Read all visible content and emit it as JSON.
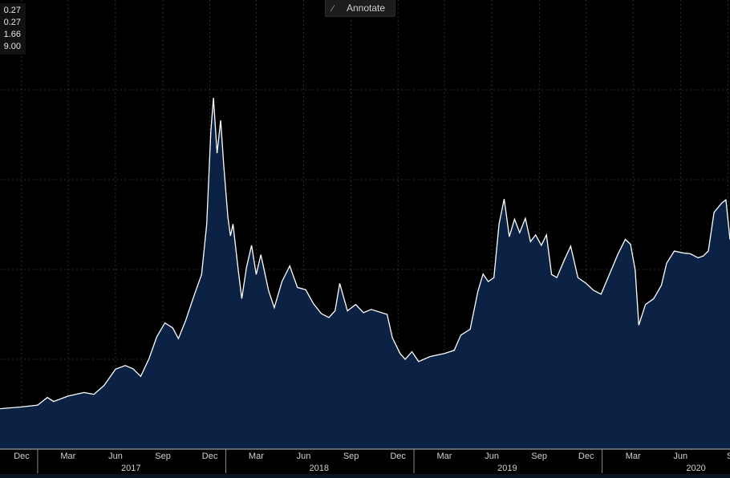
{
  "toolbar": {
    "annotate_label": "Annotate",
    "annotate_icon": "pencil-icon"
  },
  "stats": [
    "0.27",
    "0.27",
    "1.66",
    "9.00"
  ],
  "colors": {
    "background": "#000000",
    "area_fill": "#0c2244",
    "line": "#ffffff",
    "grid": "#3a3a3a",
    "axis_text": "#d0d0d0"
  },
  "chart_data": {
    "type": "area",
    "title": "",
    "xlabel": "",
    "ylabel": "",
    "grid": true,
    "y_axis_visible": false,
    "month_ticks": [
      "Dec",
      "Mar",
      "Jun",
      "Sep",
      "Dec",
      "Mar",
      "Jun",
      "Sep",
      "Dec",
      "Mar",
      "Jun",
      "Sep",
      "Dec",
      "Mar",
      "Jun",
      "S"
    ],
    "year_labels": [
      "2017",
      "2018",
      "2019",
      "2020"
    ],
    "x_range": [
      "2016-10-20",
      "2020-09-05"
    ],
    "y_scale_note": "relative level read from plot, 0 = chart bottom, 100 = top of plot",
    "series": [
      {
        "values": [
          [
            "2016-10-20",
            9.0
          ],
          [
            "2016-12-01",
            9.4
          ],
          [
            "2017-01-01",
            9.8
          ],
          [
            "2017-01-20",
            11.5
          ],
          [
            "2017-02-01",
            10.6
          ],
          [
            "2017-03-01",
            11.8
          ],
          [
            "2017-04-01",
            12.6
          ],
          [
            "2017-04-20",
            12.2
          ],
          [
            "2017-05-10",
            14.2
          ],
          [
            "2017-06-01",
            17.8
          ],
          [
            "2017-06-20",
            18.6
          ],
          [
            "2017-07-05",
            17.9
          ],
          [
            "2017-07-20",
            16.2
          ],
          [
            "2017-08-05",
            20.1
          ],
          [
            "2017-08-20",
            25.0
          ],
          [
            "2017-09-05",
            28.1
          ],
          [
            "2017-09-20",
            27.0
          ],
          [
            "2017-10-01",
            24.6
          ],
          [
            "2017-10-15",
            28.6
          ],
          [
            "2017-11-01",
            34.4
          ],
          [
            "2017-11-15",
            38.9
          ],
          [
            "2017-11-25",
            50.1
          ],
          [
            "2017-12-03",
            70.7
          ],
          [
            "2017-12-08",
            78.2
          ],
          [
            "2017-12-15",
            65.9
          ],
          [
            "2017-12-22",
            73.2
          ],
          [
            "2017-12-28",
            63.2
          ],
          [
            "2018-01-05",
            51.6
          ],
          [
            "2018-01-10",
            47.5
          ],
          [
            "2018-01-15",
            50.1
          ],
          [
            "2018-01-25",
            40.0
          ],
          [
            "2018-02-01",
            33.5
          ],
          [
            "2018-02-10",
            40.4
          ],
          [
            "2018-02-20",
            45.4
          ],
          [
            "2018-03-01",
            38.9
          ],
          [
            "2018-03-10",
            43.3
          ],
          [
            "2018-03-25",
            35.3
          ],
          [
            "2018-04-05",
            31.5
          ],
          [
            "2018-04-20",
            37.3
          ],
          [
            "2018-05-05",
            40.8
          ],
          [
            "2018-05-20",
            36.0
          ],
          [
            "2018-06-05",
            35.5
          ],
          [
            "2018-06-20",
            32.4
          ],
          [
            "2018-07-05",
            30.2
          ],
          [
            "2018-07-20",
            29.3
          ],
          [
            "2018-08-01",
            30.8
          ],
          [
            "2018-08-10",
            36.9
          ],
          [
            "2018-08-25",
            30.8
          ],
          [
            "2018-09-10",
            32.2
          ],
          [
            "2018-09-25",
            30.4
          ],
          [
            "2018-10-10",
            31.1
          ],
          [
            "2018-11-10",
            30.0
          ],
          [
            "2018-11-20",
            24.8
          ],
          [
            "2018-12-05",
            21.3
          ],
          [
            "2018-12-15",
            20.0
          ],
          [
            "2018-12-28",
            21.7
          ],
          [
            "2019-01-10",
            19.5
          ],
          [
            "2019-02-01",
            20.6
          ],
          [
            "2019-03-01",
            21.3
          ],
          [
            "2019-03-20",
            22.0
          ],
          [
            "2019-04-02",
            25.4
          ],
          [
            "2019-04-20",
            26.7
          ],
          [
            "2019-05-05",
            35.1
          ],
          [
            "2019-05-15",
            39.0
          ],
          [
            "2019-05-25",
            37.3
          ],
          [
            "2019-06-05",
            38.2
          ],
          [
            "2019-06-15",
            50.1
          ],
          [
            "2019-06-25",
            55.7
          ],
          [
            "2019-07-05",
            47.3
          ],
          [
            "2019-07-15",
            51.2
          ],
          [
            "2019-07-25",
            48.2
          ],
          [
            "2019-08-05",
            51.4
          ],
          [
            "2019-08-15",
            46.2
          ],
          [
            "2019-08-25",
            47.7
          ],
          [
            "2019-09-05",
            45.4
          ],
          [
            "2019-09-15",
            47.7
          ],
          [
            "2019-09-25",
            38.9
          ],
          [
            "2019-10-05",
            38.2
          ],
          [
            "2019-10-20",
            42.2
          ],
          [
            "2019-11-01",
            45.2
          ],
          [
            "2019-11-15",
            38.2
          ],
          [
            "2019-12-01",
            36.9
          ],
          [
            "2019-12-15",
            35.4
          ],
          [
            "2019-12-30",
            34.5
          ],
          [
            "2020-01-15",
            38.9
          ],
          [
            "2020-02-01",
            43.5
          ],
          [
            "2020-02-15",
            46.7
          ],
          [
            "2020-02-25",
            45.6
          ],
          [
            "2020-03-05",
            39.9
          ],
          [
            "2020-03-12",
            27.6
          ],
          [
            "2020-03-25",
            32.2
          ],
          [
            "2020-04-10",
            33.5
          ],
          [
            "2020-04-25",
            36.5
          ],
          [
            "2020-05-05",
            41.4
          ],
          [
            "2020-05-20",
            44.1
          ],
          [
            "2020-06-05",
            43.7
          ],
          [
            "2020-06-20",
            43.5
          ],
          [
            "2020-07-05",
            42.6
          ],
          [
            "2020-07-15",
            43.0
          ],
          [
            "2020-07-25",
            44.1
          ],
          [
            "2020-08-05",
            52.7
          ],
          [
            "2020-08-20",
            54.8
          ],
          [
            "2020-08-28",
            55.5
          ],
          [
            "2020-09-05",
            46.7
          ]
        ]
      }
    ]
  }
}
